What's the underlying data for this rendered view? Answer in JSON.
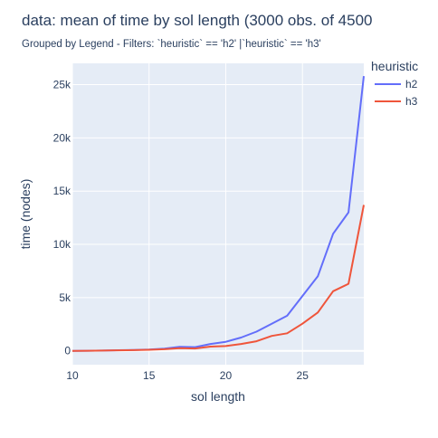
{
  "title": "data: mean of time   by sol length (3000 obs. of 4500",
  "subtitle": "Grouped by Legend - Filters: `heuristic` == 'h2' |`heuristic` == 'h3'",
  "chart_data": {
    "type": "line",
    "xlabel": "sol length",
    "ylabel": "time (nodes)",
    "xlim": [
      10,
      29
    ],
    "ylim": [
      -1300,
      27000
    ],
    "x_ticks": [
      10,
      15,
      20,
      25
    ],
    "x_tick_labels": [
      "10",
      "15",
      "20",
      "25"
    ],
    "y_ticks": [
      0,
      5000,
      10000,
      15000,
      20000,
      25000
    ],
    "y_tick_labels": [
      "0",
      "5k",
      "10k",
      "15k",
      "20k",
      "25k"
    ],
    "grid": true,
    "legend_title": "heuristic",
    "legend_position": "top-right",
    "plot_background": "#e5ecf6",
    "series": [
      {
        "name": "h2",
        "color": "#636efa",
        "x": [
          10,
          11,
          12,
          13,
          14,
          15,
          16,
          17,
          18,
          19,
          20,
          21,
          22,
          23,
          24,
          25,
          26,
          27,
          28,
          29
        ],
        "values": [
          0,
          10,
          30,
          60,
          80,
          120,
          200,
          380,
          350,
          650,
          850,
          1250,
          1800,
          2550,
          3300,
          5150,
          7000,
          11000,
          13000,
          25800
        ]
      },
      {
        "name": "h3",
        "color": "#ef553b",
        "x": [
          10,
          11,
          12,
          13,
          14,
          15,
          16,
          17,
          18,
          19,
          20,
          21,
          22,
          23,
          24,
          25,
          26,
          27,
          28,
          29
        ],
        "values": [
          0,
          10,
          25,
          50,
          70,
          100,
          150,
          250,
          220,
          400,
          450,
          650,
          900,
          1400,
          1650,
          2550,
          3600,
          5600,
          6300,
          13700
        ]
      }
    ]
  }
}
